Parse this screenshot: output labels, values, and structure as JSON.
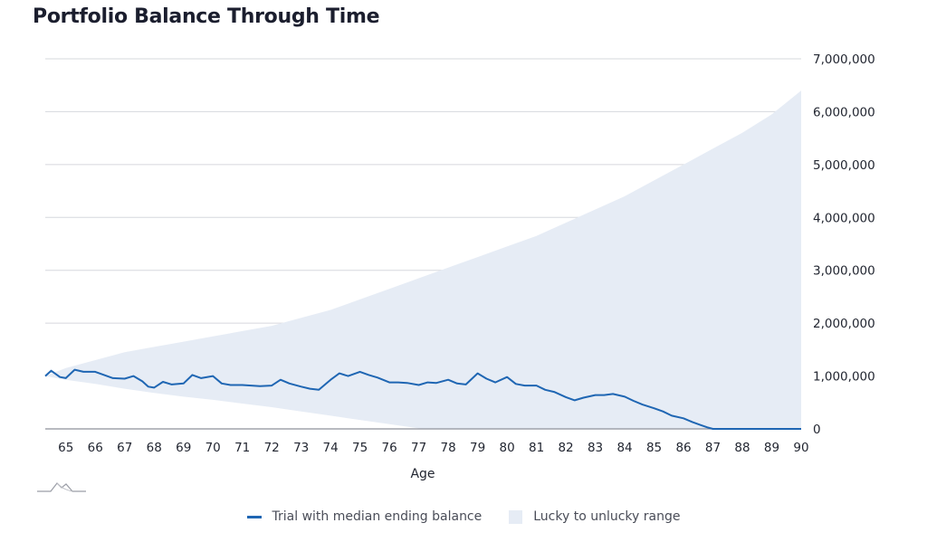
{
  "page": {
    "title": "Portfolio Balance Through Time"
  },
  "colors": {
    "median_line": "#1f66b3",
    "range_fill": "#e6ecf5",
    "gridline": "#d6d8de",
    "text": "#222631"
  },
  "legend": {
    "median_label": "Trial with median ending balance",
    "range_label": "Lucky to unlucky range"
  },
  "icons": {
    "logo": "mountain-logo-icon"
  },
  "chart_data": {
    "type": "area",
    "title": "Portfolio Balance Through Time",
    "xlabel": "Age",
    "ylabel": "",
    "xlim": [
      64.3,
      90
    ],
    "ylim": [
      0,
      7000000
    ],
    "x_ticks": [
      65,
      66,
      67,
      68,
      69,
      70,
      71,
      72,
      73,
      74,
      75,
      76,
      77,
      78,
      79,
      80,
      81,
      82,
      83,
      84,
      85,
      86,
      87,
      88,
      89,
      90
    ],
    "y_ticks": [
      0,
      1000000,
      2000000,
      3000000,
      4000000,
      5000000,
      6000000,
      7000000
    ],
    "y_tick_labels": [
      "0",
      "1,000,000",
      "2,000,000",
      "3,000,000",
      "4,000,000",
      "5,000,000",
      "6,000,000",
      "7,000,000"
    ],
    "grid": "horizontal",
    "y_axis_position": "right",
    "legend_position": "bottom-center",
    "series": [
      {
        "name": "Lucky to unlucky range",
        "type": "range",
        "x": [
          64.3,
          65,
          66,
          67,
          68,
          69,
          70,
          71,
          72,
          73,
          74,
          75,
          76,
          77,
          77.5,
          78,
          79,
          80,
          81,
          82,
          83,
          84,
          85,
          86,
          87,
          88,
          89,
          90
        ],
        "upper": [
          1000000,
          1150000,
          1300000,
          1450000,
          1550000,
          1650000,
          1750000,
          1850000,
          1950000,
          2100000,
          2250000,
          2450000,
          2650000,
          2850000,
          2950000,
          3050000,
          3250000,
          3450000,
          3650000,
          3900000,
          4150000,
          4400000,
          4700000,
          5000000,
          5300000,
          5600000,
          5950000,
          6400000
        ],
        "lower": [
          1000000,
          930000,
          850000,
          760000,
          680000,
          610000,
          550000,
          480000,
          410000,
          330000,
          250000,
          170000,
          90000,
          10000,
          0,
          0,
          0,
          0,
          0,
          0,
          0,
          0,
          0,
          0,
          0,
          0,
          0,
          0
        ]
      },
      {
        "name": "Trial with median ending balance",
        "type": "line",
        "x": [
          64.3,
          64.5,
          64.8,
          65,
          65.3,
          65.6,
          66,
          66.3,
          66.6,
          67,
          67.3,
          67.6,
          67.8,
          68,
          68.3,
          68.6,
          69,
          69.3,
          69.6,
          70,
          70.3,
          70.6,
          71,
          71.3,
          71.6,
          72,
          72.3,
          72.6,
          73,
          73.3,
          73.6,
          74,
          74.3,
          74.6,
          75,
          75.3,
          75.6,
          76,
          76.3,
          76.6,
          77,
          77.3,
          77.6,
          78,
          78.3,
          78.6,
          79,
          79.3,
          79.6,
          80,
          80.3,
          80.6,
          81,
          81.3,
          81.6,
          82,
          82.3,
          82.6,
          83,
          83.3,
          83.6,
          84,
          84.3,
          84.6,
          85,
          85.3,
          85.6,
          86,
          86.3,
          86.6,
          86.8,
          87,
          88,
          89,
          90
        ],
        "y": [
          1000000,
          1100000,
          980000,
          960000,
          1120000,
          1080000,
          1080000,
          1020000,
          960000,
          950000,
          1000000,
          900000,
          800000,
          780000,
          890000,
          840000,
          860000,
          1020000,
          960000,
          1000000,
          860000,
          830000,
          830000,
          820000,
          810000,
          820000,
          930000,
          860000,
          800000,
          760000,
          740000,
          930000,
          1050000,
          1000000,
          1080000,
          1020000,
          970000,
          880000,
          880000,
          870000,
          830000,
          880000,
          870000,
          930000,
          860000,
          840000,
          1050000,
          950000,
          880000,
          980000,
          850000,
          820000,
          820000,
          740000,
          700000,
          600000,
          540000,
          590000,
          640000,
          640000,
          660000,
          610000,
          530000,
          460000,
          390000,
          330000,
          250000,
          200000,
          130000,
          70000,
          30000,
          0,
          0,
          0,
          0
        ]
      }
    ]
  }
}
